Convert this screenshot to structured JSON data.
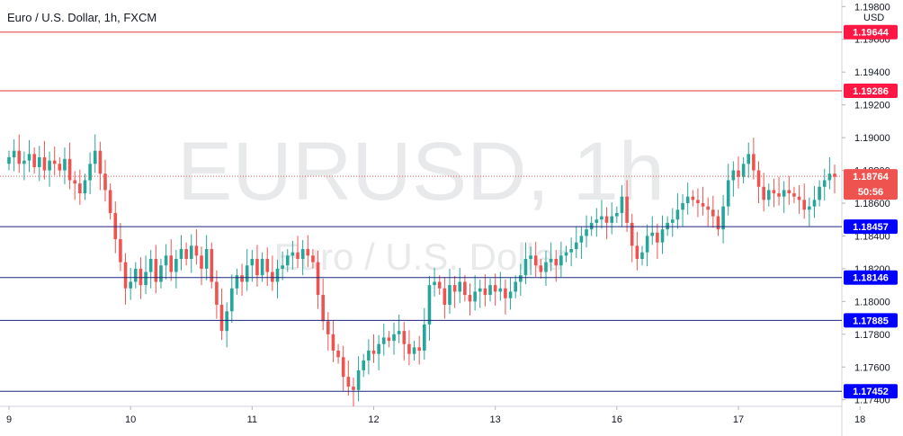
{
  "title": "Euro / U.S. Dollar, 1h, FXCM",
  "watermark": {
    "symbol": "EURUSD, 1h",
    "name": "Euro / U.S. Dollar"
  },
  "chart_data": {
    "type": "candlestick",
    "currency": "USD",
    "ylim": [
      1.1736,
      1.1984
    ],
    "y_ticks": [
      "1.19800",
      "1.19600",
      "1.19400",
      "1.19200",
      "1.19000",
      "1.18800",
      "1.18600",
      "1.18400",
      "1.18200",
      "1.18000",
      "1.17800",
      "1.17600",
      "1.17400"
    ],
    "y_tick_values": [
      1.198,
      1.196,
      1.194,
      1.192,
      1.19,
      1.188,
      1.186,
      1.184,
      1.182,
      1.18,
      1.178,
      1.176,
      1.174
    ],
    "x_ticks": [
      {
        "label": "9",
        "index": 0
      },
      {
        "label": "10",
        "index": 24
      },
      {
        "label": "11",
        "index": 48
      },
      {
        "label": "12",
        "index": 72
      },
      {
        "label": "13",
        "index": 96
      },
      {
        "label": "16",
        "index": 120
      },
      {
        "label": "17",
        "index": 144
      },
      {
        "label": "18",
        "index": 168
      }
    ],
    "levels": [
      {
        "value": 1.19644,
        "label": "1.19644",
        "color": "#e53935",
        "tag": "#ff1744"
      },
      {
        "value": 1.19286,
        "label": "1.19286",
        "color": "#e53935",
        "tag": "#ff1744"
      },
      {
        "value": 1.18457,
        "label": "1.18457",
        "color": "#1a237e",
        "tag": "#0000ff"
      },
      {
        "value": 1.18146,
        "label": "1.18146",
        "color": "#1a237e",
        "tag": "#0000ff"
      },
      {
        "value": 1.17885,
        "label": "1.17885",
        "color": "#1a237e",
        "tag": "#0000ff"
      },
      {
        "value": 1.17452,
        "label": "1.17452",
        "color": "#1a237e",
        "tag": "#0000ff"
      }
    ],
    "current_price": {
      "value": 1.18764,
      "label": "1.18764",
      "countdown": "50:56",
      "color": "#ef5350"
    },
    "up_color": "#26a69a",
    "down_color": "#ef5350",
    "closes": [
      1.1888,
      1.1892,
      1.1884,
      1.1886,
      1.189,
      1.1882,
      1.1888,
      1.188,
      1.1886,
      1.1884,
      1.188,
      1.1887,
      1.1874,
      1.1872,
      1.1866,
      1.1874,
      1.1884,
      1.1892,
      1.1878,
      1.1868,
      1.1854,
      1.1838,
      1.1824,
      1.1808,
      1.1812,
      1.182,
      1.181,
      1.1818,
      1.1826,
      1.1812,
      1.1822,
      1.1828,
      1.1818,
      1.1826,
      1.1832,
      1.1826,
      1.1834,
      1.1828,
      1.182,
      1.1832,
      1.1812,
      1.1798,
      1.1782,
      1.1794,
      1.1808,
      1.1816,
      1.1812,
      1.1822,
      1.1826,
      1.1816,
      1.1826,
      1.1818,
      1.1812,
      1.182,
      1.1822,
      1.1828,
      1.183,
      1.1826,
      1.1832,
      1.1828,
      1.1824,
      1.1804,
      1.1788,
      1.178,
      1.177,
      1.1766,
      1.1754,
      1.1748,
      1.1746,
      1.1758,
      1.1764,
      1.177,
      1.1768,
      1.1774,
      1.1778,
      1.1776,
      1.178,
      1.1782,
      1.1774,
      1.1768,
      1.1772,
      1.177,
      1.1786,
      1.181,
      1.1812,
      1.1808,
      1.1798,
      1.181,
      1.1806,
      1.1812,
      1.1804,
      1.18,
      1.1806,
      1.1808,
      1.1804,
      1.181,
      1.1806,
      1.1808,
      1.1802,
      1.1806,
      1.1812,
      1.1816,
      1.1826,
      1.1828,
      1.1822,
      1.1818,
      1.1824,
      1.1826,
      1.1822,
      1.1828,
      1.183,
      1.1832,
      1.1836,
      1.184,
      1.1844,
      1.1848,
      1.185,
      1.1852,
      1.1848,
      1.1852,
      1.1854,
      1.1864,
      1.1848,
      1.1834,
      1.1826,
      1.183,
      1.184,
      1.1842,
      1.1836,
      1.1844,
      1.1848,
      1.185,
      1.1856,
      1.186,
      1.1864,
      1.1862,
      1.186,
      1.1858,
      1.1856,
      1.1852,
      1.1844,
      1.1858,
      1.1874,
      1.188,
      1.1876,
      1.1884,
      1.189,
      1.188,
      1.187,
      1.1862,
      1.1868,
      1.1866,
      1.1864,
      1.1868,
      1.1866,
      1.1864,
      1.1862,
      1.1856,
      1.1858,
      1.1862,
      1.187,
      1.1874,
      1.1878,
      1.1876
    ]
  }
}
